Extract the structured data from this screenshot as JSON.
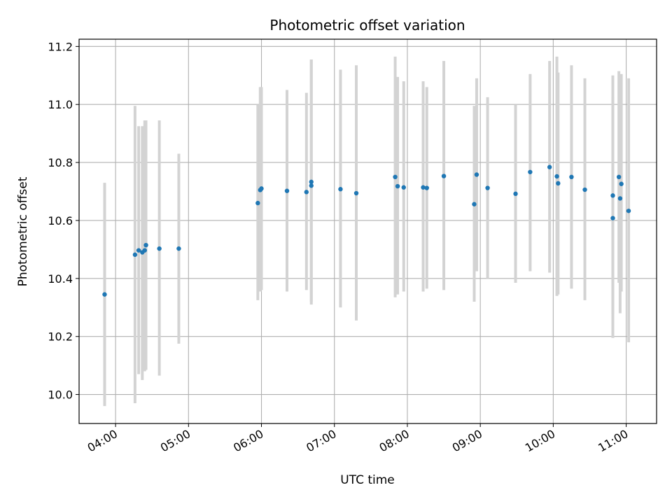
{
  "chart_data": {
    "type": "scatter",
    "title": "Photometric offset variation",
    "xlabel": "UTC time",
    "ylabel": "Photometric offset",
    "x_unit": "UTC time",
    "xlim": [
      "03:30",
      "11:25"
    ],
    "ylim": [
      9.9,
      11.225
    ],
    "grid": true,
    "x_ticks": [
      "04:00",
      "05:00",
      "06:00",
      "07:00",
      "08:00",
      "09:00",
      "10:00",
      "11:00"
    ],
    "y_ticks": [
      "10.0",
      "10.2",
      "10.4",
      "10.6",
      "10.8",
      "11.0",
      "11.2"
    ],
    "colors": {
      "point": "#1f77b4",
      "errorbar": "#d3d3d3",
      "grid": "#b0b0b0"
    },
    "points": [
      {
        "x": "03:51",
        "y": 10.345,
        "ylo": 9.96,
        "yhi": 10.73
      },
      {
        "x": "04:16",
        "y": 10.482,
        "ylo": 9.97,
        "yhi": 10.995
      },
      {
        "x": "04:19",
        "y": 10.497,
        "ylo": 10.07,
        "yhi": 10.925
      },
      {
        "x": "04:22",
        "y": 10.49,
        "ylo": 10.05,
        "yhi": 10.925
      },
      {
        "x": "04:24",
        "y": 10.497,
        "ylo": 10.08,
        "yhi": 10.945
      },
      {
        "x": "04:25",
        "y": 10.515,
        "ylo": 10.085,
        "yhi": 10.945
      },
      {
        "x": "04:36",
        "y": 10.503,
        "ylo": 10.065,
        "yhi": 10.945
      },
      {
        "x": "04:52",
        "y": 10.503,
        "ylo": 10.175,
        "yhi": 10.83
      },
      {
        "x": "05:57",
        "y": 10.66,
        "ylo": 10.325,
        "yhi": 11.0
      },
      {
        "x": "05:59",
        "y": 10.705,
        "ylo": 10.355,
        "yhi": 11.06
      },
      {
        "x": "06:00",
        "y": 10.71,
        "ylo": 10.36,
        "yhi": 11.06
      },
      {
        "x": "06:21",
        "y": 10.702,
        "ylo": 10.355,
        "yhi": 11.05
      },
      {
        "x": "06:37",
        "y": 10.698,
        "ylo": 10.36,
        "yhi": 11.04
      },
      {
        "x": "06:41",
        "y": 10.733,
        "ylo": 10.31,
        "yhi": 11.155
      },
      {
        "x": "06:41",
        "y": 10.72,
        "ylo": 10.32,
        "yhi": 11.155
      },
      {
        "x": "07:05",
        "y": 10.708,
        "ylo": 10.3,
        "yhi": 11.12
      },
      {
        "x": "07:18",
        "y": 10.694,
        "ylo": 10.255,
        "yhi": 11.135
      },
      {
        "x": "07:50",
        "y": 10.75,
        "ylo": 10.335,
        "yhi": 11.165
      },
      {
        "x": "07:52",
        "y": 10.718,
        "ylo": 10.345,
        "yhi": 11.095
      },
      {
        "x": "07:57",
        "y": 10.714,
        "ylo": 10.355,
        "yhi": 11.08
      },
      {
        "x": "08:13",
        "y": 10.714,
        "ylo": 10.355,
        "yhi": 11.08
      },
      {
        "x": "08:16",
        "y": 10.712,
        "ylo": 10.365,
        "yhi": 11.06
      },
      {
        "x": "08:30",
        "y": 10.753,
        "ylo": 10.36,
        "yhi": 11.15
      },
      {
        "x": "08:55",
        "y": 10.656,
        "ylo": 10.32,
        "yhi": 10.995
      },
      {
        "x": "08:57",
        "y": 10.758,
        "ylo": 10.425,
        "yhi": 11.09
      },
      {
        "x": "09:06",
        "y": 10.712,
        "ylo": 10.4,
        "yhi": 11.025
      },
      {
        "x": "09:29",
        "y": 10.692,
        "ylo": 10.385,
        "yhi": 11.0
      },
      {
        "x": "09:41",
        "y": 10.767,
        "ylo": 10.425,
        "yhi": 11.105
      },
      {
        "x": "09:57",
        "y": 10.784,
        "ylo": 10.42,
        "yhi": 11.15
      },
      {
        "x": "10:03",
        "y": 10.752,
        "ylo": 10.34,
        "yhi": 11.165
      },
      {
        "x": "10:04",
        "y": 10.728,
        "ylo": 10.345,
        "yhi": 11.11
      },
      {
        "x": "10:15",
        "y": 10.75,
        "ylo": 10.365,
        "yhi": 11.135
      },
      {
        "x": "10:26",
        "y": 10.706,
        "ylo": 10.325,
        "yhi": 11.09
      },
      {
        "x": "10:49",
        "y": 10.686,
        "ylo": 10.275,
        "yhi": 11.1
      },
      {
        "x": "10:49",
        "y": 10.608,
        "ylo": 10.195,
        "yhi": 11.025
      },
      {
        "x": "10:54",
        "y": 10.75,
        "ylo": 10.385,
        "yhi": 11.115
      },
      {
        "x": "10:55",
        "y": 10.676,
        "ylo": 10.28,
        "yhi": 11.075
      },
      {
        "x": "10:56",
        "y": 10.726,
        "ylo": 10.355,
        "yhi": 11.105
      },
      {
        "x": "11:02",
        "y": 10.633,
        "ylo": 10.18,
        "yhi": 11.09
      }
    ]
  }
}
